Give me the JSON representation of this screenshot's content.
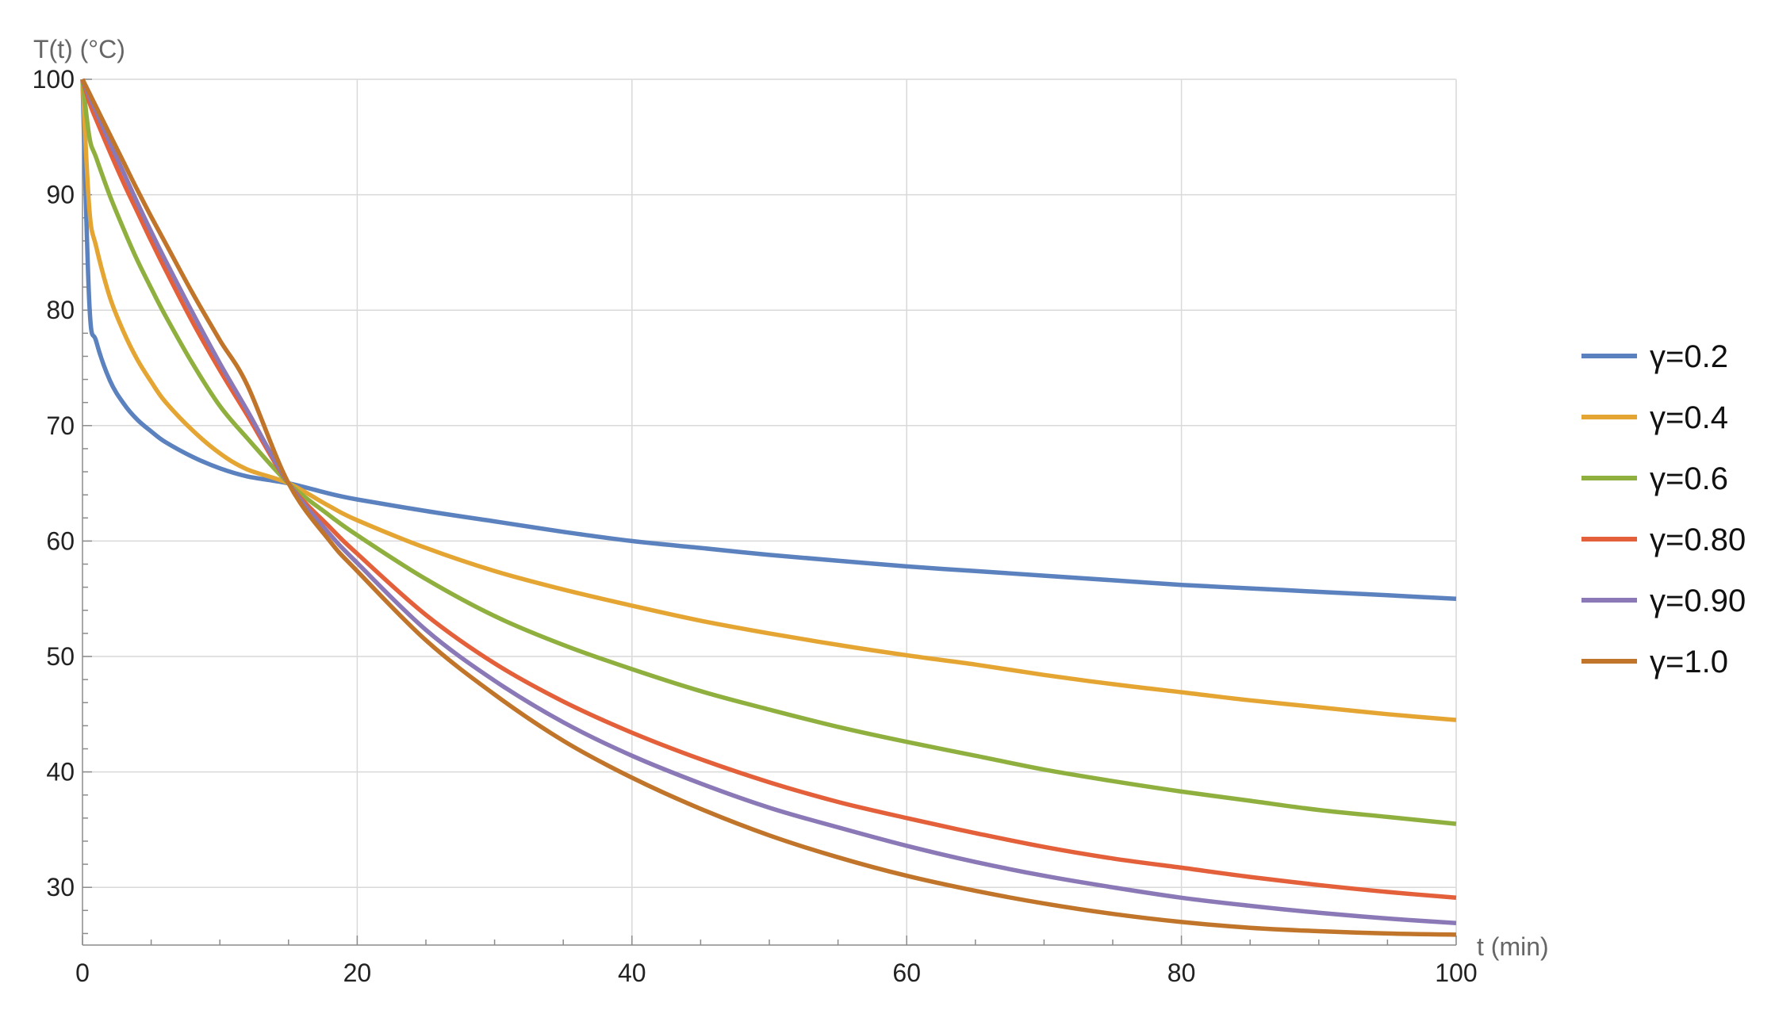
{
  "chart_data": {
    "type": "line",
    "xlabel": "t (min)",
    "ylabel": "T(t) (°C)",
    "xlim": [
      0,
      100
    ],
    "ylim": [
      25,
      100
    ],
    "x_ticks": [
      0,
      20,
      40,
      60,
      80,
      100
    ],
    "y_ticks": [
      30,
      40,
      50,
      60,
      70,
      80,
      90,
      100
    ],
    "grid": true,
    "legend_position": "right",
    "x": [
      0,
      0.5,
      1,
      2,
      3,
      4,
      5,
      6,
      8,
      10,
      12,
      15,
      18,
      20,
      25,
      30,
      35,
      40,
      45,
      50,
      55,
      60,
      65,
      70,
      75,
      80,
      85,
      90,
      95,
      100
    ],
    "series": [
      {
        "name": "γ=0.2",
        "color": "#5b82be",
        "values": [
          100,
          80.5,
          77.3,
          73.9,
          71.9,
          70.5,
          69.5,
          68.6,
          67.3,
          66.3,
          65.6,
          65.0,
          64.1,
          63.6,
          62.6,
          61.7,
          60.8,
          60.0,
          59.4,
          58.8,
          58.3,
          57.8,
          57.4,
          57.0,
          56.6,
          56.2,
          55.9,
          55.6,
          55.3,
          55.0
        ]
      },
      {
        "name": "γ=0.4",
        "color": "#e5a532",
        "values": [
          100,
          88.7,
          85.5,
          81.1,
          78.1,
          75.7,
          73.8,
          72.1,
          69.6,
          67.6,
          66.2,
          65.0,
          63.0,
          61.8,
          59.4,
          57.4,
          55.8,
          54.4,
          53.1,
          52.0,
          51.0,
          50.1,
          49.3,
          48.4,
          47.6,
          46.9,
          46.2,
          45.6,
          45.0,
          44.5
        ]
      },
      {
        "name": "γ=0.6",
        "color": "#8fb03e",
        "values": [
          100,
          95.0,
          93.2,
          89.9,
          87.0,
          84.3,
          81.9,
          79.6,
          75.4,
          71.7,
          68.9,
          65.0,
          62.2,
          60.5,
          56.7,
          53.5,
          51.0,
          48.9,
          47.0,
          45.4,
          43.9,
          42.6,
          41.4,
          40.2,
          39.2,
          38.3,
          37.5,
          36.7,
          36.1,
          35.5
        ]
      },
      {
        "name": "γ=0.80",
        "color": "#e3603a",
        "values": [
          100,
          98.0,
          96.5,
          93.7,
          91.0,
          88.5,
          86.0,
          83.6,
          79.0,
          74.8,
          70.9,
          65.0,
          61.2,
          58.9,
          53.6,
          49.4,
          46.1,
          43.4,
          41.1,
          39.1,
          37.4,
          36.0,
          34.7,
          33.5,
          32.5,
          31.7,
          30.9,
          30.2,
          29.6,
          29.1
        ]
      },
      {
        "name": "γ=0.90",
        "color": "#8a79b6",
        "values": [
          100,
          98.5,
          97.2,
          94.5,
          91.9,
          89.3,
          86.8,
          84.4,
          79.8,
          75.4,
          71.3,
          65.0,
          60.6,
          58.1,
          52.3,
          47.9,
          44.3,
          41.4,
          39.0,
          36.9,
          35.2,
          33.6,
          32.2,
          31.0,
          30.0,
          29.1,
          28.4,
          27.8,
          27.3,
          26.9
        ]
      },
      {
        "name": "γ=1.0",
        "color": "#c0752a",
        "values": [
          100,
          98.8,
          97.6,
          95.2,
          92.8,
          90.4,
          88.1,
          85.9,
          81.5,
          77.4,
          73.5,
          65.0,
          60.0,
          57.4,
          51.4,
          46.7,
          42.7,
          39.5,
          36.8,
          34.5,
          32.6,
          31.0,
          29.7,
          28.6,
          27.7,
          27.0,
          26.5,
          26.2,
          26.0,
          25.9
        ]
      }
    ]
  }
}
